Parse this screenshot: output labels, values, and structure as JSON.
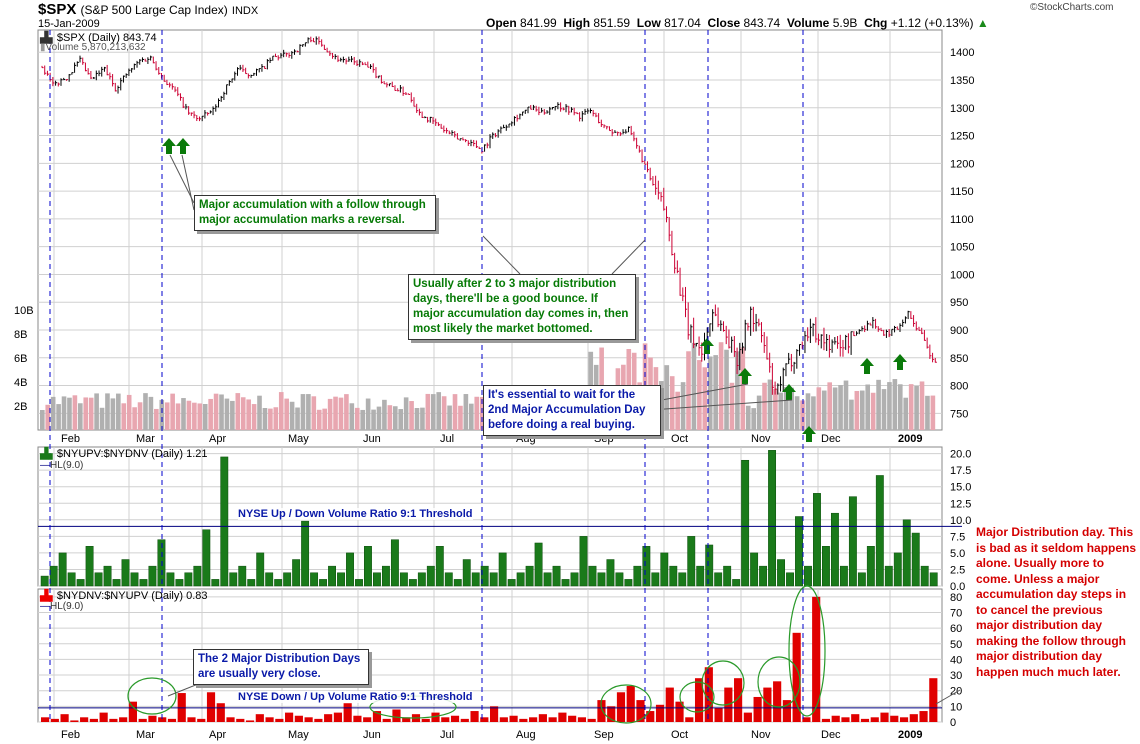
{
  "header": {
    "symbol": "$SPX",
    "name": "(S&P 500 Large Cap Index)",
    "exchange": "INDX",
    "date": "15-Jan-2009",
    "open_label": "Open",
    "open": "841.99",
    "high_label": "High",
    "high": "851.59",
    "low_label": "Low",
    "low": "817.04",
    "close_label": "Close",
    "close": "843.74",
    "volume_label": "Volume",
    "volume": "5.9B",
    "chg_label": "Chg",
    "chg": "+1.12 (+0.13%)",
    "brand": "©StockCharts.com"
  },
  "colors": {
    "up": "#000000",
    "down": "#cc0033",
    "vol_up": "#b0b0b0",
    "vol_down": "#e8a6b0",
    "green": "#1a7a1a",
    "red": "#e00000",
    "blue": "#0000cc",
    "arrow": "#0a7a0a",
    "grid": "#d0d0d0"
  },
  "panel1": {
    "legend_price": "$SPX (Daily) 843.74",
    "legend_volume": "Volume 5,870,213,632"
  },
  "panel2": {
    "legend": "$NYUPV:$NYDNV (Daily) 1.21",
    "legend_hl": "HL(9.0)",
    "threshold_label": "NYSE Up / Down Volume Ratio 9:1 Threshold"
  },
  "panel3": {
    "legend": "$NYDNV:$NYUPV (Daily) 0.83",
    "legend_hl": "HL(9.0)",
    "threshold_label": "NYSE Down / Up Volume Ratio 9:1 Threshold"
  },
  "notes": {
    "accumulation": "Major accumulation with a follow through major accumulation marks a reversal.",
    "distribution_bounce": "Usually after 2 to 3 major distribution days, there'll be a good bounce. If major accumulation day comes in, then most likely the market bottomed.",
    "wait": "It's essential to wait for the 2nd Major Accumulation Day before doing a real buying.",
    "close_days": "The 2 Major Distribution Days are usually very close.",
    "major_distribution": "Major Distribution day. This is bad as it seldom happens alone. Usually more to come. Unless a major accumulation day steps in to cancel the previous major distribution day making the follow through major distribution day happen much much later."
  },
  "chart_data": [
    {
      "type": "line",
      "title": "$SPX (Daily) 843.74",
      "ylim": [
        720,
        1440
      ],
      "y_ticks": [
        750,
        800,
        850,
        900,
        950,
        1000,
        1050,
        1100,
        1150,
        1200,
        1250,
        1300,
        1350,
        1400
      ],
      "x_ticks": [
        "Feb",
        "Mar",
        "Apr",
        "May",
        "Jun",
        "Jul",
        "Aug",
        "Sep",
        "Oct",
        "Nov",
        "Dec",
        "2009"
      ],
      "series": [
        {
          "name": "$SPX",
          "values": [
            [
              0,
              1375
            ],
            [
              4,
              1340
            ],
            [
              9,
              1355
            ],
            [
              14,
              1385
            ],
            [
              18,
              1350
            ],
            [
              23,
              1370
            ],
            [
              27,
              1335
            ],
            [
              31,
              1360
            ],
            [
              36,
              1385
            ],
            [
              40,
              1390
            ],
            [
              45,
              1350
            ],
            [
              49,
              1330
            ],
            [
              54,
              1290
            ],
            [
              58,
              1280
            ],
            [
              63,
              1295
            ],
            [
              67,
              1330
            ],
            [
              72,
              1370
            ],
            [
              76,
              1360
            ],
            [
              81,
              1370
            ],
            [
              85,
              1390
            ],
            [
              90,
              1395
            ],
            [
              94,
              1405
            ],
            [
              99,
              1425
            ],
            [
              103,
              1415
            ],
            [
              108,
              1390
            ],
            [
              112,
              1385
            ],
            [
              117,
              1380
            ],
            [
              121,
              1370
            ],
            [
              126,
              1345
            ],
            [
              130,
              1335
            ],
            [
              135,
              1325
            ],
            [
              139,
              1290
            ],
            [
              144,
              1275
            ],
            [
              148,
              1260
            ],
            [
              153,
              1245
            ],
            [
              157,
              1240
            ],
            [
              162,
              1225
            ],
            [
              166,
              1250
            ],
            [
              171,
              1270
            ],
            [
              175,
              1285
            ],
            [
              180,
              1300
            ],
            [
              184,
              1290
            ],
            [
              189,
              1305
            ],
            [
              193,
              1300
            ],
            [
              198,
              1285
            ],
            [
              202,
              1295
            ],
            [
              207,
              1265
            ],
            [
              211,
              1255
            ],
            [
              216,
              1260
            ],
            [
              220,
              1220
            ],
            [
              225,
              1160
            ],
            [
              229,
              1120
            ],
            [
              234,
              1000
            ],
            [
              238,
              900
            ],
            [
              243,
              860
            ],
            [
              247,
              935
            ],
            [
              252,
              890
            ],
            [
              256,
              850
            ],
            [
              261,
              930
            ],
            [
              265,
              890
            ],
            [
              270,
              780
            ],
            [
              274,
              830
            ],
            [
              279,
              870
            ],
            [
              283,
              905
            ],
            [
              288,
              880
            ],
            [
              292,
              870
            ],
            [
              297,
              880
            ],
            [
              301,
              900
            ],
            [
              306,
              915
            ],
            [
              310,
              890
            ],
            [
              315,
              905
            ],
            [
              319,
              930
            ],
            [
              324,
              890
            ],
            [
              328,
              843.74
            ]
          ]
        }
      ],
      "volume": {
        "name": "Volume",
        "ylim": [
          0,
          10
        ],
        "y_ticks_label": [
          "2B",
          "4B",
          "6B",
          "8B",
          "10B"
        ]
      }
    },
    {
      "type": "bar",
      "title": "$NYUPV:$NYDNV (Daily) 1.21",
      "ylim": [
        0,
        21
      ],
      "y_ticks": [
        0.0,
        2.5,
        5.0,
        7.5,
        10.0,
        12.5,
        15.0,
        17.5,
        20.0
      ],
      "threshold": 9,
      "series": [
        {
          "name": "$NYUPV:$NYDNV",
          "values": [
            1.5,
            3,
            5,
            2,
            1,
            6,
            2,
            3,
            1,
            4,
            2,
            1,
            3,
            7,
            2,
            1,
            2,
            3,
            8.5,
            1,
            19.5,
            2,
            3,
            1,
            5,
            2,
            1,
            2,
            4,
            9.8,
            2,
            1,
            3,
            2,
            5,
            1,
            6,
            2,
            3,
            7,
            2,
            1,
            2,
            3,
            6,
            2,
            1,
            4,
            2,
            3,
            2,
            5,
            1,
            2,
            3,
            6.5,
            2,
            3,
            1,
            2,
            7.5,
            3,
            2,
            4,
            2,
            1,
            3,
            6,
            2,
            5,
            3,
            2,
            7.5,
            3,
            6.2,
            2,
            3,
            1,
            19,
            5,
            3,
            20.5,
            4,
            2,
            10.5,
            3,
            14,
            6,
            11,
            3,
            13.5,
            2,
            6,
            16.7,
            3,
            5,
            10,
            8,
            3,
            2
          ]
        }
      ]
    },
    {
      "type": "bar",
      "title": "$NYDNV:$NYUPV (Daily) 0.83",
      "ylim": [
        0,
        85
      ],
      "y_ticks": [
        0,
        10,
        20,
        30,
        40,
        50,
        60,
        70,
        80
      ],
      "threshold": 9,
      "series": [
        {
          "name": "$NYDNV:$NYUPV",
          "values": [
            3,
            2,
            5,
            1,
            3,
            2,
            6,
            2,
            3,
            13,
            2,
            4,
            3,
            2,
            18.5,
            3,
            2,
            19,
            12,
            3,
            2,
            1,
            5,
            3,
            2,
            6,
            4,
            3,
            2,
            5,
            6,
            12,
            4,
            3,
            7,
            2,
            8,
            3,
            5,
            2,
            6,
            3,
            4,
            2,
            7,
            3,
            10,
            3,
            4,
            2,
            3,
            5,
            3,
            6,
            4,
            3,
            2,
            14,
            10,
            19,
            23,
            14,
            7,
            11,
            22,
            13,
            3,
            28,
            35,
            9,
            22,
            28,
            6,
            16,
            22,
            26,
            14,
            57,
            3,
            80,
            2,
            4,
            3,
            5,
            2,
            3,
            6,
            4,
            3,
            5,
            7,
            28
          ]
        }
      ]
    }
  ]
}
